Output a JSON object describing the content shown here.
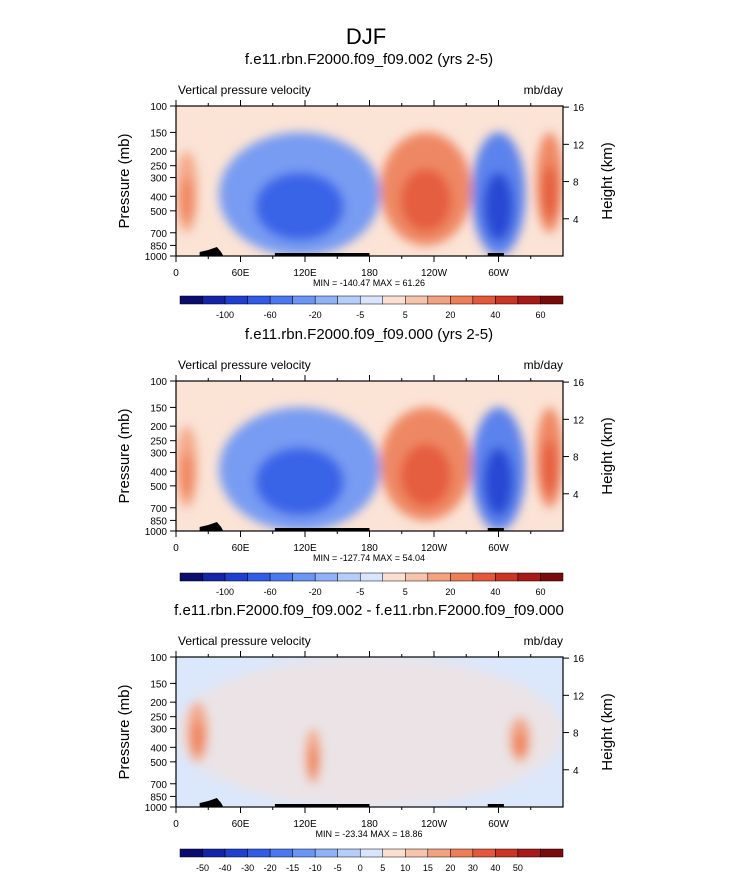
{
  "figure_title": "DJF",
  "panel_common": {
    "left_string": "Vertical pressure velocity",
    "right_string": "mb/day",
    "ylabel": "Pressure (mb)",
    "ylabel_right": "Height (km)",
    "pressure_ticks": [
      "100",
      "150",
      "200",
      "250",
      "300",
      "400",
      "500",
      "700",
      "850",
      "1000"
    ],
    "pressure_values": [
      100,
      150,
      200,
      250,
      300,
      400,
      500,
      700,
      850,
      1000
    ],
    "height_ticks": [
      "16",
      "12",
      "8",
      "4"
    ],
    "height_values": [
      16,
      12,
      8,
      4
    ],
    "lon_ticks": [
      "0",
      "60E",
      "120E",
      "180",
      "120W",
      "60W"
    ],
    "lon_values": [
      0,
      60,
      120,
      180,
      240,
      300
    ]
  },
  "chart_data": [
    {
      "type": "heatmap",
      "title": "f.e11.rbn.F2000.f09_f09.002 (yrs 2-5)",
      "stats": "MIN = -140.47  MAX =  61.26",
      "xlim": [
        0,
        360
      ],
      "ylim": [
        1000,
        100
      ],
      "y_scale": "log",
      "colorbar": {
        "labels": [
          "-100",
          "-60",
          "-20",
          "-5",
          "5",
          "20",
          "40",
          "60"
        ],
        "levels": [
          -140,
          -120,
          -100,
          -80,
          -60,
          -40,
          -20,
          -10,
          -5,
          0,
          5,
          10,
          20,
          30,
          40,
          50,
          60
        ],
        "colors": [
          "#0b0d6e",
          "#1424a8",
          "#1f3fd0",
          "#2f5be6",
          "#4a78f0",
          "#6a94f5",
          "#8fb1f8",
          "#b5cdfb",
          "#d8e5fc",
          "#fbe0d2",
          "#f7c3aa",
          "#f3a27f",
          "#ed7e56",
          "#e4573a",
          "#cc3424",
          "#a81917",
          "#7a0a0c"
        ]
      },
      "regions": [
        {
          "lon_range": [
            40,
            190
          ],
          "p_range": [
            150,
            1000
          ],
          "sign": "negative",
          "approx_value": -30
        },
        {
          "lon_range": [
            190,
            275
          ],
          "p_range": [
            150,
            850
          ],
          "sign": "positive",
          "approx_value": 12
        },
        {
          "lon_range": [
            275,
            325
          ],
          "p_range": [
            150,
            1000
          ],
          "sign": "negative",
          "approx_value": -60
        },
        {
          "lon_range": [
            0,
            20
          ],
          "p_range": [
            200,
            700
          ],
          "sign": "positive",
          "approx_value": 10
        },
        {
          "lon_range": [
            335,
            360
          ],
          "p_range": [
            150,
            700
          ],
          "sign": "positive",
          "approx_value": 15
        }
      ]
    },
    {
      "type": "heatmap",
      "title": "f.e11.rbn.F2000.f09_f09.000 (yrs 2-5)",
      "stats": "MIN = -127.74  MAX =  54.04",
      "xlim": [
        0,
        360
      ],
      "ylim": [
        1000,
        100
      ],
      "y_scale": "log",
      "colorbar": {
        "labels": [
          "-100",
          "-60",
          "-20",
          "-5",
          "5",
          "20",
          "40",
          "60"
        ],
        "levels": [
          -140,
          -120,
          -100,
          -80,
          -60,
          -40,
          -20,
          -10,
          -5,
          0,
          5,
          10,
          20,
          30,
          40,
          50,
          60
        ],
        "colors": [
          "#0b0d6e",
          "#1424a8",
          "#1f3fd0",
          "#2f5be6",
          "#4a78f0",
          "#6a94f5",
          "#8fb1f8",
          "#b5cdfb",
          "#d8e5fc",
          "#fbe0d2",
          "#f7c3aa",
          "#f3a27f",
          "#ed7e56",
          "#e4573a",
          "#cc3424",
          "#a81917",
          "#7a0a0c"
        ]
      },
      "regions": [
        {
          "lon_range": [
            40,
            190
          ],
          "p_range": [
            150,
            1000
          ],
          "sign": "negative",
          "approx_value": -30
        },
        {
          "lon_range": [
            190,
            275
          ],
          "p_range": [
            150,
            850
          ],
          "sign": "positive",
          "approx_value": 12
        },
        {
          "lon_range": [
            275,
            325
          ],
          "p_range": [
            150,
            1000
          ],
          "sign": "negative",
          "approx_value": -60
        },
        {
          "lon_range": [
            0,
            20
          ],
          "p_range": [
            200,
            700
          ],
          "sign": "positive",
          "approx_value": 8
        },
        {
          "lon_range": [
            335,
            360
          ],
          "p_range": [
            150,
            700
          ],
          "sign": "positive",
          "approx_value": 15
        }
      ]
    },
    {
      "type": "heatmap",
      "title": "f.e11.rbn.F2000.f09_f09.002 - f.e11.rbn.F2000.f09_f09.000",
      "stats": "MIN = -23.34  MAX =  18.86",
      "xlim": [
        0,
        360
      ],
      "ylim": [
        1000,
        100
      ],
      "y_scale": "log",
      "colorbar": {
        "labels": [
          "-50",
          "-40",
          "-30",
          "-20",
          "-15",
          "-10",
          "-5",
          "0",
          "5",
          "10",
          "15",
          "20",
          "30",
          "40",
          "50"
        ],
        "levels": [
          -60,
          -50,
          -40,
          -30,
          -20,
          -15,
          -10,
          -5,
          0,
          5,
          10,
          15,
          20,
          30,
          40,
          50,
          60
        ],
        "colors": [
          "#0b0d6e",
          "#1424a8",
          "#1f3fd0",
          "#2f5be6",
          "#4a78f0",
          "#6a94f5",
          "#8fb1f8",
          "#b5cdfb",
          "#d8e5fc",
          "#fbe0d2",
          "#f7c3aa",
          "#f3a27f",
          "#ed7e56",
          "#e4573a",
          "#cc3424",
          "#a81917",
          "#7a0a0c"
        ]
      },
      "regions": [
        {
          "lon_range": [
            0,
            360
          ],
          "p_range": [
            100,
            1000
          ],
          "sign": "near-zero",
          "approx_value": 0
        },
        {
          "lon_range": [
            10,
            30
          ],
          "p_range": [
            200,
            500
          ],
          "sign": "positive",
          "approx_value": 5
        },
        {
          "lon_range": [
            120,
            135
          ],
          "p_range": [
            300,
            700
          ],
          "sign": "positive",
          "approx_value": 5
        },
        {
          "lon_range": [
            310,
            330
          ],
          "p_range": [
            250,
            500
          ],
          "sign": "positive",
          "approx_value": 5
        }
      ]
    }
  ]
}
